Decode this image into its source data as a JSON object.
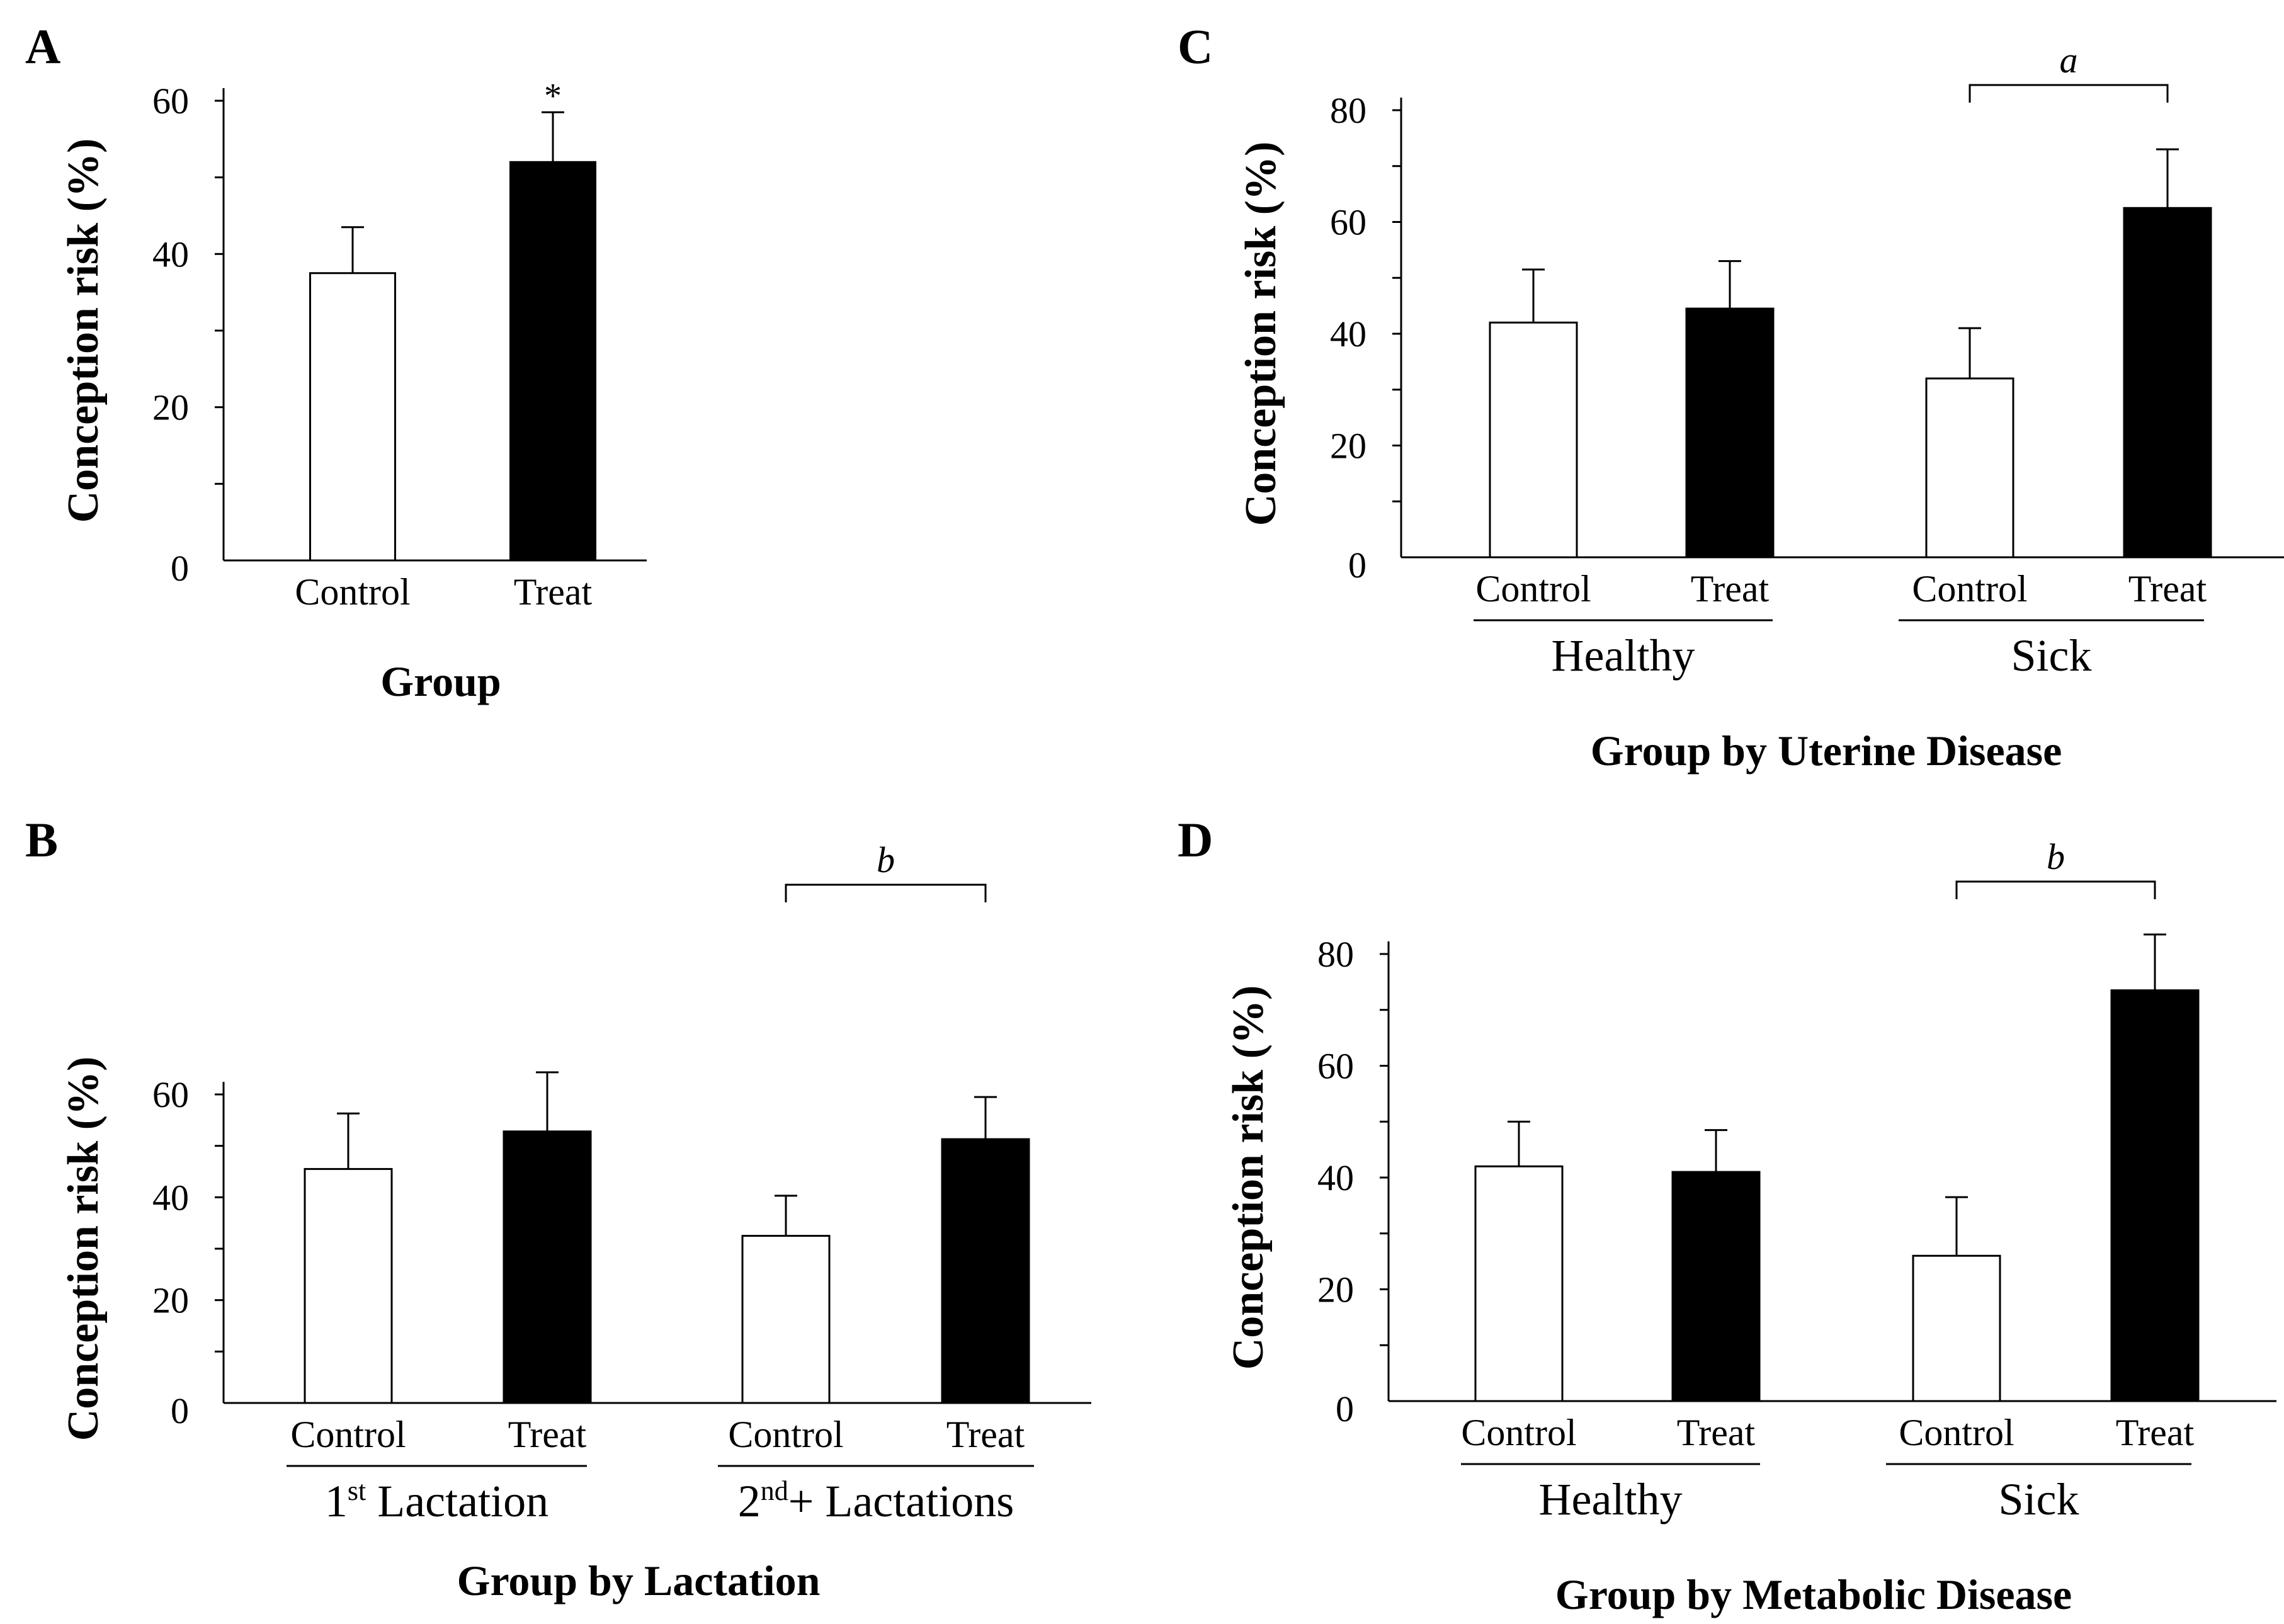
{
  "chart_data": [
    {
      "panel": "A",
      "type": "bar",
      "ylabel": "Conception risk (%)",
      "xlabel": "Group",
      "ylim": [
        0,
        60
      ],
      "yticks": [
        0,
        20,
        40,
        60
      ],
      "categories": [
        "Control",
        "Treat"
      ],
      "values": [
        37.5,
        52
      ],
      "errors": [
        6,
        6.5
      ],
      "bar_colors": [
        "#ffffff",
        "#000000"
      ],
      "group_labels": [],
      "annotation": {
        "text": "*",
        "over": [
          1
        ]
      }
    },
    {
      "panel": "B",
      "type": "bar",
      "ylabel": "Conception risk (%)",
      "xlabel": "Group by Lactation",
      "ylim": [
        0,
        60
      ],
      "yticks": [
        0,
        20,
        40,
        60
      ],
      "categories": [
        "Control",
        "Treat",
        "Control",
        "Treat"
      ],
      "values": [
        45.5,
        52.8,
        32.5,
        51.3
      ],
      "errors": [
        10.8,
        11.5,
        7.8,
        8.2
      ],
      "bar_colors": [
        "#ffffff",
        "#000000",
        "#ffffff",
        "#000000"
      ],
      "group_labels": [
        {
          "base": "1",
          "sup": "st",
          "rest": " Lactation",
          "bars": [
            0,
            1
          ]
        },
        {
          "base": "2",
          "sup": "nd",
          "rest": "+ Lactations",
          "bars": [
            2,
            3
          ]
        }
      ],
      "annotation": {
        "text": "b",
        "over": [
          2,
          3
        ]
      }
    },
    {
      "panel": "C",
      "type": "bar",
      "ylabel": "Conception risk (%)",
      "xlabel": "Group by Uterine Disease",
      "ylim": [
        0,
        80
      ],
      "yticks": [
        0,
        20,
        40,
        60,
        80
      ],
      "categories": [
        "Control",
        "Treat",
        "Control",
        "Treat"
      ],
      "values": [
        42,
        44.5,
        32,
        62.5
      ],
      "errors": [
        9.5,
        8.5,
        9,
        10.5
      ],
      "bar_colors": [
        "#ffffff",
        "#000000",
        "#ffffff",
        "#000000"
      ],
      "group_labels": [
        {
          "base": "Healthy",
          "sup": "",
          "rest": "",
          "bars": [
            0,
            1
          ]
        },
        {
          "base": "Sick",
          "sup": "",
          "rest": "",
          "bars": [
            2,
            3
          ]
        }
      ],
      "annotation": {
        "text": "a",
        "over": [
          2,
          3
        ]
      }
    },
    {
      "panel": "D",
      "type": "bar",
      "ylabel": "Conception risk (%)",
      "xlabel": "Group by Metabolic Disease",
      "ylim": [
        0,
        80
      ],
      "yticks": [
        0,
        20,
        40,
        60,
        80
      ],
      "categories": [
        "Control",
        "Treat",
        "Control",
        "Treat"
      ],
      "values": [
        42,
        41,
        26,
        73.5
      ],
      "errors": [
        8,
        7.5,
        10.5,
        10
      ],
      "bar_colors": [
        "#ffffff",
        "#000000",
        "#ffffff",
        "#000000"
      ],
      "group_labels": [
        {
          "base": "Healthy",
          "sup": "",
          "rest": "",
          "bars": [
            0,
            1
          ]
        },
        {
          "base": "Sick",
          "sup": "",
          "rest": "",
          "bars": [
            2,
            3
          ]
        }
      ],
      "annotation": {
        "text": "b",
        "over": [
          2,
          3
        ]
      }
    }
  ]
}
